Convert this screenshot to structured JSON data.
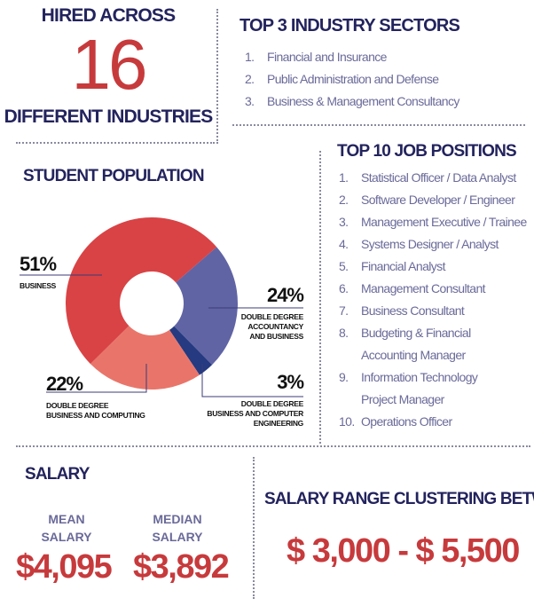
{
  "hired": {
    "top": "HIRED ACROSS",
    "number": "16",
    "bottom": "DIFFERENT INDUSTRIES"
  },
  "sectors": {
    "title": "TOP 3 INDUSTRY SECTORS",
    "items": [
      {
        "num": "1.",
        "label": "Financial and Insurance"
      },
      {
        "num": "2.",
        "label": "Public Administration and Defense"
      },
      {
        "num": "3.",
        "label": "Business & Management Consultancy"
      }
    ]
  },
  "population": {
    "title": "STUDENT POPULATION"
  },
  "chart_data": {
    "type": "pie",
    "style": "donut",
    "title": "STUDENT POPULATION",
    "slices": [
      {
        "pct_label": "51%",
        "value": 51,
        "label": "BUSINESS",
        "color": "#d94345"
      },
      {
        "pct_label": "24%",
        "value": 24,
        "label": "DOUBLE DEGREE ACCOUNTANCY AND BUSINESS",
        "label_lines": [
          "DOUBLE DEGREE",
          "ACCOUNTANCY",
          "AND BUSINESS"
        ],
        "color": "#6064a4"
      },
      {
        "pct_label": "3%",
        "value": 3,
        "label": "DOUBLE DEGREE BUSINESS AND COMPUTER ENGINEERING",
        "label_lines": [
          "DOUBLE DEGREE",
          "BUSINESS AND COMPUTER",
          "ENGINEERING"
        ],
        "color": "#253a80"
      },
      {
        "pct_label": "22%",
        "value": 22,
        "label": "DOUBLE DEGREE BUSINESS AND COMPUTING",
        "label_lines": [
          "DOUBLE DEGREE",
          "BUSINESS AND COMPUTING"
        ],
        "color": "#e9756a"
      }
    ]
  },
  "jobs": {
    "title": "TOP 10 JOB POSITIONS",
    "items": [
      {
        "num": "1.",
        "label": "Statistical Officer / Data Analyst"
      },
      {
        "num": "2.",
        "label": "Software Developer / Engineer"
      },
      {
        "num": "3.",
        "label": "Management Executive / Trainee"
      },
      {
        "num": "4.",
        "label": "Systems Designer / Analyst"
      },
      {
        "num": "5.",
        "label": "Financial Analyst"
      },
      {
        "num": "6.",
        "label": "Management Consultant"
      },
      {
        "num": "7.",
        "label": "Business Consultant"
      },
      {
        "num": "8.",
        "label": "Budgeting & Financial",
        "label2": "Accounting Manager"
      },
      {
        "num": "9.",
        "label": "Information Technology",
        "label2": "Project Manager"
      },
      {
        "num": "10.",
        "label": "Operations Officer"
      }
    ]
  },
  "salary": {
    "title": "SALARY",
    "mean_label_1": "MEAN",
    "mean_label_2": "SALARY",
    "mean": "$4,095",
    "median_label_1": "MEDIAN",
    "median_label_2": "SALARY",
    "median": "$3,892"
  },
  "range": {
    "title": "SALARY RANGE CLUSTERING BETWEEN",
    "value": "$ 3,000 - $ 5,500"
  },
  "colors": {
    "navy": "#23235e",
    "red": "#c73a3c",
    "list_text": "#6a6a9a"
  }
}
